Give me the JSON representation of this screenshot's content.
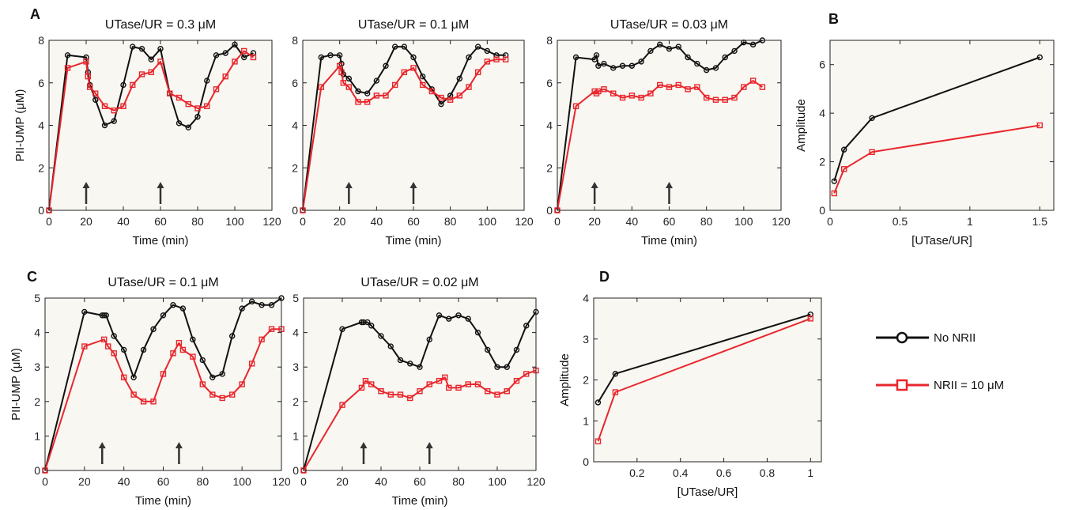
{
  "colors": {
    "no_nrii": "#111111",
    "nrii": "#e8262c",
    "arrow": "#333333",
    "plot_bg": "#f8f7f2"
  },
  "panel_labels": {
    "A": "A",
    "B": "B",
    "C": "C",
    "D": "D"
  },
  "legend": {
    "items": [
      {
        "label": "No NRII",
        "color": "#111111",
        "marker": "circle"
      },
      {
        "label": "NRII = 10 μM",
        "color": "#e8262c",
        "marker": "square"
      }
    ]
  },
  "chart_data": [
    {
      "id": "A1",
      "type": "line",
      "title": "UTase/UR = 0.3 μM",
      "xlabel": "Time (min)",
      "ylabel": "PII-UMP (μM)",
      "xlim": [
        0,
        120
      ],
      "ylim": [
        0,
        8
      ],
      "xticks": [
        0,
        20,
        40,
        60,
        80,
        100,
        120
      ],
      "yticks": [
        0,
        2,
        4,
        6,
        8
      ],
      "arrows_x": [
        20,
        60
      ],
      "series": [
        {
          "name": "No NRII",
          "marker": "circle",
          "color": "#111111",
          "x": [
            0,
            10,
            20,
            21,
            22,
            25,
            30,
            35,
            40,
            45,
            50,
            55,
            60,
            65,
            70,
            75,
            80,
            85,
            90,
            95,
            100,
            105,
            110
          ],
          "y": [
            0,
            7.3,
            7.2,
            6.5,
            5.9,
            5.2,
            4.0,
            4.2,
            5.9,
            7.7,
            7.6,
            7.1,
            7.6,
            5.5,
            4.1,
            3.9,
            4.4,
            6.1,
            7.3,
            7.4,
            7.8,
            7.2,
            7.4
          ]
        },
        {
          "name": "NRII = 10 μM",
          "marker": "square",
          "color": "#e8262c",
          "x": [
            0,
            10,
            20,
            21,
            22,
            25,
            30,
            35,
            40,
            45,
            50,
            55,
            60,
            65,
            70,
            75,
            80,
            85,
            90,
            95,
            100,
            105,
            110
          ],
          "y": [
            0,
            6.7,
            7.0,
            6.3,
            5.8,
            5.5,
            4.9,
            4.7,
            4.9,
            5.9,
            6.4,
            6.5,
            7.0,
            5.5,
            5.3,
            5.0,
            4.8,
            4.9,
            5.7,
            6.3,
            7.0,
            7.5,
            7.2
          ]
        }
      ]
    },
    {
      "id": "A2",
      "type": "line",
      "title": "UTase/UR = 0.1 μM",
      "xlabel": "Time (min)",
      "ylabel": "",
      "xlim": [
        0,
        120
      ],
      "ylim": [
        0,
        8
      ],
      "xticks": [
        0,
        20,
        40,
        60,
        80,
        100,
        120
      ],
      "yticks": [
        0,
        2,
        4,
        6,
        8
      ],
      "arrows_x": [
        25,
        60
      ],
      "series": [
        {
          "name": "No NRII",
          "marker": "circle",
          "color": "#111111",
          "x": [
            0,
            10,
            15,
            20,
            21,
            22,
            25,
            30,
            35,
            40,
            45,
            50,
            55,
            60,
            65,
            70,
            75,
            80,
            85,
            90,
            95,
            100,
            105,
            110
          ],
          "y": [
            0,
            7.2,
            7.3,
            7.3,
            6.9,
            6.4,
            6.2,
            5.6,
            5.5,
            6.1,
            6.8,
            7.7,
            7.7,
            7.2,
            6.3,
            5.7,
            5.0,
            5.4,
            6.2,
            7.2,
            7.7,
            7.5,
            7.3,
            7.3
          ]
        },
        {
          "name": "NRII = 10 μM",
          "marker": "square",
          "color": "#e8262c",
          "x": [
            0,
            10,
            20,
            21,
            22,
            25,
            30,
            35,
            40,
            45,
            50,
            55,
            60,
            65,
            70,
            75,
            80,
            85,
            90,
            95,
            100,
            105,
            110
          ],
          "y": [
            0,
            5.8,
            6.8,
            6.5,
            6.0,
            5.8,
            5.1,
            5.1,
            5.4,
            5.4,
            5.9,
            6.5,
            6.7,
            5.9,
            5.6,
            5.3,
            5.2,
            5.4,
            5.8,
            6.5,
            7.0,
            7.1,
            7.1
          ]
        }
      ]
    },
    {
      "id": "A3",
      "type": "line",
      "title": "UTase/UR = 0.03 μM",
      "xlabel": "Time (min)",
      "ylabel": "",
      "xlim": [
        0,
        120
      ],
      "ylim": [
        0,
        8
      ],
      "xticks": [
        0,
        20,
        40,
        60,
        80,
        100,
        120
      ],
      "yticks": [
        0,
        2,
        4,
        6,
        8
      ],
      "arrows_x": [
        20,
        60
      ],
      "series": [
        {
          "name": "No NRII",
          "marker": "circle",
          "color": "#111111",
          "x": [
            0,
            10,
            20,
            21,
            22,
            25,
            30,
            35,
            40,
            45,
            50,
            55,
            60,
            65,
            70,
            75,
            80,
            85,
            90,
            95,
            100,
            105,
            110
          ],
          "y": [
            0,
            7.2,
            7.1,
            7.3,
            6.8,
            6.9,
            6.7,
            6.8,
            6.8,
            7.0,
            7.5,
            7.8,
            7.6,
            7.7,
            7.2,
            6.9,
            6.6,
            6.7,
            7.2,
            7.5,
            7.9,
            7.8,
            8.0
          ]
        },
        {
          "name": "NRII = 10 μM",
          "marker": "square",
          "color": "#e8262c",
          "x": [
            0,
            10,
            20,
            21,
            22,
            25,
            30,
            35,
            40,
            45,
            50,
            55,
            60,
            65,
            70,
            75,
            80,
            85,
            90,
            95,
            100,
            105,
            110
          ],
          "y": [
            0,
            4.9,
            5.6,
            5.5,
            5.6,
            5.7,
            5.5,
            5.3,
            5.4,
            5.3,
            5.5,
            5.9,
            5.8,
            5.9,
            5.7,
            5.8,
            5.3,
            5.2,
            5.2,
            5.3,
            5.8,
            6.1,
            5.8
          ]
        }
      ]
    },
    {
      "id": "B",
      "type": "line",
      "title": "",
      "xlabel": "[UTase/UR]",
      "ylabel": "Amplitude",
      "xlim": [
        0,
        1.6
      ],
      "ylim": [
        0,
        7
      ],
      "xticks": [
        0,
        0.5,
        1,
        1.5
      ],
      "xtick_labels": [
        "0",
        "0.5",
        "1",
        "1.5"
      ],
      "yticks": [
        0,
        2,
        4,
        6
      ],
      "series": [
        {
          "name": "No NRII",
          "marker": "circle",
          "color": "#111111",
          "x": [
            0.03,
            0.1,
            0.3,
            1.5
          ],
          "y": [
            1.2,
            2.5,
            3.8,
            6.3
          ]
        },
        {
          "name": "NRII = 10 μM",
          "marker": "square",
          "color": "#e8262c",
          "x": [
            0.03,
            0.1,
            0.3,
            1.5
          ],
          "y": [
            0.7,
            1.7,
            2.4,
            3.5
          ]
        }
      ]
    },
    {
      "id": "C1",
      "type": "line",
      "title": "UTase/UR = 0.1 μM",
      "xlabel": "Time (min)",
      "ylabel": "PII-UMP (μM)",
      "xlim": [
        0,
        120
      ],
      "ylim": [
        0,
        5
      ],
      "xticks": [
        0,
        20,
        40,
        60,
        80,
        100,
        120
      ],
      "yticks": [
        0,
        1,
        2,
        3,
        4,
        5
      ],
      "arrows_x": [
        29,
        68
      ],
      "series": [
        {
          "name": "No NRII",
          "marker": "circle",
          "color": "#111111",
          "x": [
            0,
            20,
            29,
            30,
            31,
            35,
            40,
            45,
            50,
            55,
            60,
            65,
            70,
            75,
            80,
            85,
            90,
            95,
            100,
            105,
            110,
            115,
            120
          ],
          "y": [
            0,
            4.6,
            4.5,
            4.5,
            4.5,
            3.9,
            3.5,
            2.7,
            3.5,
            4.1,
            4.5,
            4.8,
            4.7,
            3.8,
            3.2,
            2.7,
            2.8,
            3.9,
            4.7,
            4.9,
            4.8,
            4.8,
            5.0
          ]
        },
        {
          "name": "NRII = 10 μM",
          "marker": "square",
          "color": "#e8262c",
          "x": [
            0,
            20,
            30,
            32,
            35,
            40,
            45,
            50,
            55,
            60,
            65,
            68,
            70,
            75,
            80,
            85,
            90,
            95,
            100,
            105,
            110,
            115,
            120
          ],
          "y": [
            0,
            3.6,
            3.8,
            3.6,
            3.4,
            2.7,
            2.2,
            2.0,
            2.0,
            2.8,
            3.4,
            3.7,
            3.5,
            3.3,
            2.5,
            2.2,
            2.1,
            2.2,
            2.5,
            3.1,
            3.8,
            4.1,
            4.1
          ]
        }
      ]
    },
    {
      "id": "C2",
      "type": "line",
      "title": "UTase/UR = 0.02 μM",
      "xlabel": "Time (min)",
      "ylabel": "",
      "xlim": [
        0,
        120
      ],
      "ylim": [
        0,
        5
      ],
      "xticks": [
        0,
        20,
        40,
        60,
        80,
        100,
        120
      ],
      "yticks": [
        0,
        1,
        2,
        3,
        4,
        5
      ],
      "arrows_x": [
        31,
        65
      ],
      "series": [
        {
          "name": "No NRII",
          "marker": "circle",
          "color": "#111111",
          "x": [
            0,
            20,
            30,
            31,
            33,
            35,
            40,
            45,
            50,
            55,
            60,
            65,
            70,
            75,
            80,
            85,
            90,
            95,
            100,
            105,
            110,
            115,
            120
          ],
          "y": [
            0,
            4.1,
            4.3,
            4.3,
            4.3,
            4.2,
            3.9,
            3.6,
            3.2,
            3.1,
            3.0,
            3.8,
            4.5,
            4.4,
            4.5,
            4.4,
            4.0,
            3.5,
            3.0,
            3.0,
            3.5,
            4.2,
            4.6
          ]
        },
        {
          "name": "NRII = 10 μM",
          "marker": "square",
          "color": "#e8262c",
          "x": [
            0,
            20,
            30,
            32,
            35,
            40,
            45,
            50,
            55,
            60,
            65,
            70,
            73,
            75,
            80,
            85,
            90,
            95,
            100,
            105,
            110,
            115,
            120
          ],
          "y": [
            0,
            1.9,
            2.4,
            2.6,
            2.5,
            2.3,
            2.2,
            2.2,
            2.1,
            2.3,
            2.5,
            2.6,
            2.7,
            2.4,
            2.4,
            2.5,
            2.5,
            2.3,
            2.2,
            2.3,
            2.6,
            2.8,
            2.9
          ]
        }
      ]
    },
    {
      "id": "D",
      "type": "line",
      "title": "",
      "xlabel": "[UTase/UR]",
      "ylabel": "Amplitude",
      "xlim": [
        0,
        1.05
      ],
      "ylim": [
        0,
        4
      ],
      "xticks": [
        0.2,
        0.4,
        0.6,
        0.8,
        1
      ],
      "xtick_labels": [
        "0.2",
        "0.4",
        "0.6",
        "0.8",
        "1"
      ],
      "yticks": [
        0,
        1,
        2,
        3,
        4
      ],
      "series": [
        {
          "name": "No NRII",
          "marker": "circle",
          "color": "#111111",
          "x": [
            0.02,
            0.1,
            1.0
          ],
          "y": [
            1.45,
            2.15,
            3.6
          ]
        },
        {
          "name": "NRII = 10 μM",
          "marker": "square",
          "color": "#e8262c",
          "x": [
            0.02,
            0.1,
            1.0
          ],
          "y": [
            0.5,
            1.7,
            3.5
          ]
        }
      ]
    }
  ]
}
